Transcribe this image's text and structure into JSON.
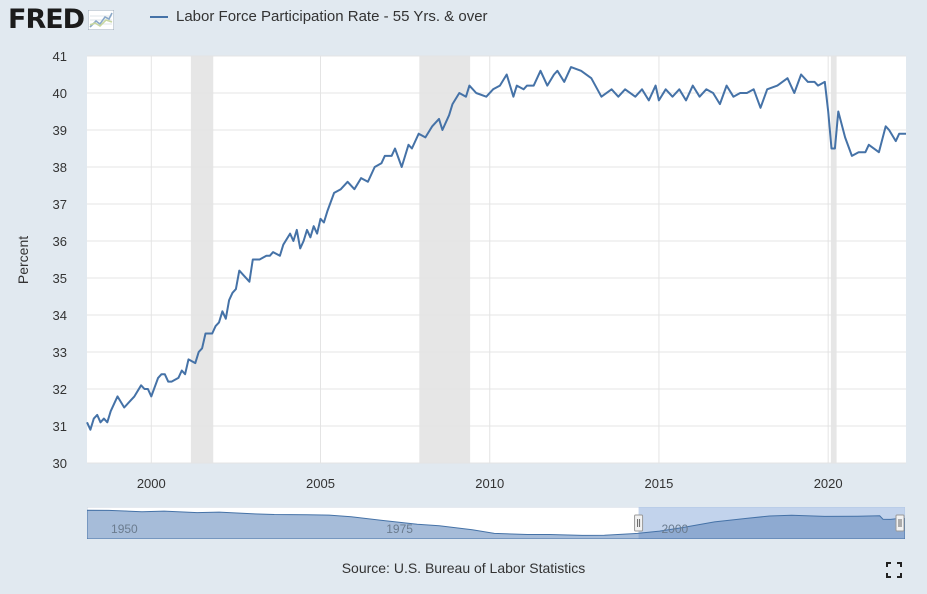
{
  "header": {
    "logo": "FRED",
    "legend_label": "Labor Force Participation Rate - 55 Yrs. & over",
    "series_color": "#4572a7"
  },
  "source": "Source: U.S. Bureau of Labor Statistics",
  "navigator": {
    "labels": [
      "1950",
      "1975",
      "2000"
    ],
    "label_years": [
      1950,
      1975,
      2000
    ],
    "range": [
      1948,
      2022.3
    ],
    "selected": [
      1998.1,
      2022.3
    ],
    "values": [
      [
        1948,
        43.3
      ],
      [
        1950,
        43.2
      ],
      [
        1953,
        42.5
      ],
      [
        1955,
        42.8
      ],
      [
        1958,
        42.0
      ],
      [
        1960,
        42.3
      ],
      [
        1963,
        41.4
      ],
      [
        1965,
        41.0
      ],
      [
        1968,
        40.9
      ],
      [
        1970,
        40.7
      ],
      [
        1972,
        39.8
      ],
      [
        1975,
        37.8
      ],
      [
        1978,
        35.8
      ],
      [
        1980,
        35.0
      ],
      [
        1983,
        32.9
      ],
      [
        1985,
        31.0
      ],
      [
        1988,
        30.4
      ],
      [
        1990,
        30.4
      ],
      [
        1993,
        29.9
      ],
      [
        1995,
        30.0
      ],
      [
        1998,
        31.0
      ],
      [
        2000,
        32.2
      ],
      [
        2002,
        34.0
      ],
      [
        2005,
        37.1
      ],
      [
        2008,
        39.0
      ],
      [
        2010,
        40.2
      ],
      [
        2012,
        40.6
      ],
      [
        2015,
        40.0
      ],
      [
        2018,
        40.1
      ],
      [
        2020,
        40.3
      ],
      [
        2020.3,
        38.5
      ],
      [
        2021,
        38.4
      ],
      [
        2022,
        39.1
      ],
      [
        2022.3,
        38.9
      ]
    ]
  },
  "chart_data": {
    "type": "line",
    "title": "",
    "xlabel": "",
    "ylabel": "Percent",
    "xlim": [
      1998.1,
      2022.3
    ],
    "ylim": [
      30,
      41
    ],
    "x_ticks": [
      2000,
      2005,
      2010,
      2015,
      2020
    ],
    "y_ticks": [
      30,
      31,
      32,
      33,
      34,
      35,
      36,
      37,
      38,
      39,
      40,
      41
    ],
    "grid": true,
    "recessions": [
      [
        2001.17,
        2001.83
      ],
      [
        2007.92,
        2009.42
      ],
      [
        2020.08,
        2020.25
      ]
    ],
    "series": [
      {
        "name": "Labor Force Participation Rate - 55 Yrs. & over",
        "x": [
          1998.1,
          1998.2,
          1998.3,
          1998.4,
          1998.5,
          1998.6,
          1998.7,
          1998.8,
          1998.9,
          1999.0,
          1999.2,
          1999.4,
          1999.5,
          1999.7,
          1999.8,
          1999.9,
          2000.0,
          2000.2,
          2000.3,
          2000.4,
          2000.5,
          2000.6,
          2000.8,
          2000.9,
          2001.0,
          2001.1,
          2001.3,
          2001.4,
          2001.5,
          2001.6,
          2001.8,
          2001.9,
          2002.0,
          2002.1,
          2002.2,
          2002.3,
          2002.4,
          2002.5,
          2002.6,
          2002.7,
          2002.9,
          2003.0,
          2003.2,
          2003.4,
          2003.5,
          2003.6,
          2003.8,
          2003.9,
          2004.1,
          2004.2,
          2004.3,
          2004.4,
          2004.5,
          2004.6,
          2004.7,
          2004.8,
          2004.9,
          2005.0,
          2005.1,
          2005.2,
          2005.4,
          2005.6,
          2005.8,
          2006.0,
          2006.2,
          2006.4,
          2006.6,
          2006.8,
          2006.9,
          2007.1,
          2007.2,
          2007.4,
          2007.6,
          2007.7,
          2007.9,
          2008.1,
          2008.3,
          2008.5,
          2008.6,
          2008.8,
          2008.9,
          2009.1,
          2009.3,
          2009.4,
          2009.6,
          2009.9,
          2010.1,
          2010.3,
          2010.5,
          2010.7,
          2010.8,
          2011.0,
          2011.1,
          2011.3,
          2011.5,
          2011.7,
          2011.9,
          2012.0,
          2012.2,
          2012.4,
          2012.7,
          2013.0,
          2013.3,
          2013.6,
          2013.8,
          2014.0,
          2014.3,
          2014.5,
          2014.7,
          2014.9,
          2015.0,
          2015.2,
          2015.4,
          2015.6,
          2015.8,
          2016.0,
          2016.2,
          2016.4,
          2016.6,
          2016.8,
          2017.0,
          2017.2,
          2017.4,
          2017.6,
          2017.8,
          2018.0,
          2018.2,
          2018.5,
          2018.8,
          2019.0,
          2019.2,
          2019.4,
          2019.6,
          2019.7,
          2019.9,
          2020.0,
          2020.1,
          2020.2,
          2020.3,
          2020.5,
          2020.7,
          2020.9,
          2021.1,
          2021.2,
          2021.5,
          2021.7,
          2021.8,
          2022.0,
          2022.1,
          2022.3
        ],
        "y": [
          31.1,
          30.9,
          31.2,
          31.3,
          31.1,
          31.2,
          31.1,
          31.4,
          31.6,
          31.8,
          31.5,
          31.7,
          31.8,
          32.1,
          32.0,
          32.0,
          31.8,
          32.3,
          32.4,
          32.4,
          32.2,
          32.2,
          32.3,
          32.5,
          32.4,
          32.8,
          32.7,
          33.0,
          33.1,
          33.5,
          33.5,
          33.7,
          33.8,
          34.1,
          33.9,
          34.4,
          34.6,
          34.7,
          35.2,
          35.1,
          34.9,
          35.5,
          35.5,
          35.6,
          35.6,
          35.7,
          35.6,
          35.9,
          36.2,
          36.0,
          36.3,
          35.8,
          36.0,
          36.3,
          36.1,
          36.4,
          36.2,
          36.6,
          36.5,
          36.8,
          37.3,
          37.4,
          37.6,
          37.4,
          37.7,
          37.6,
          38.0,
          38.1,
          38.3,
          38.3,
          38.5,
          38.0,
          38.6,
          38.5,
          38.9,
          38.8,
          39.1,
          39.3,
          39.0,
          39.4,
          39.7,
          40.0,
          39.9,
          40.2,
          40.0,
          39.9,
          40.1,
          40.2,
          40.5,
          39.9,
          40.2,
          40.1,
          40.2,
          40.2,
          40.6,
          40.2,
          40.5,
          40.6,
          40.3,
          40.7,
          40.6,
          40.4,
          39.9,
          40.1,
          39.9,
          40.1,
          39.9,
          40.1,
          39.8,
          40.2,
          39.8,
          40.1,
          39.9,
          40.1,
          39.8,
          40.2,
          39.9,
          40.1,
          40.0,
          39.7,
          40.2,
          39.9,
          40.0,
          40.0,
          40.1,
          39.6,
          40.1,
          40.2,
          40.4,
          40.0,
          40.5,
          40.3,
          40.3,
          40.2,
          40.3,
          39.5,
          38.5,
          38.5,
          39.5,
          38.8,
          38.3,
          38.4,
          38.4,
          38.6,
          38.4,
          39.1,
          39.0,
          38.7,
          38.9,
          38.9
        ]
      }
    ]
  }
}
